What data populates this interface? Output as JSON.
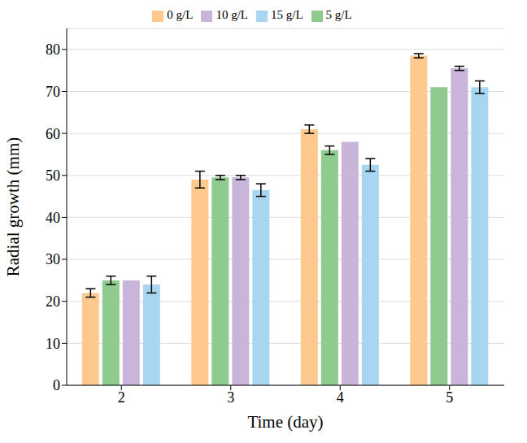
{
  "chart_data": {
    "type": "bar",
    "x_label": "Time (day)",
    "y_label": "Radial growth (mm)",
    "categories": [
      "2",
      "3",
      "4",
      "5"
    ],
    "series": [
      {
        "name": "0 g/L",
        "color": "#fdc98f",
        "values": [
          22,
          49,
          61,
          78.5
        ],
        "errors": [
          1,
          2,
          1,
          0.5
        ]
      },
      {
        "name": "5 g/L",
        "color": "#8fcb8f",
        "values": [
          25,
          49.5,
          56,
          71
        ],
        "errors": [
          1,
          0.5,
          1,
          0
        ]
      },
      {
        "name": "10 g/L",
        "color": "#c9b5d9",
        "values": [
          25,
          49.5,
          58,
          75.5
        ],
        "errors": [
          0,
          0.5,
          0,
          0.5
        ]
      },
      {
        "name": "15 g/L",
        "color": "#a8d6f0",
        "values": [
          24,
          46.5,
          52.5,
          71
        ],
        "errors": [
          2,
          1.5,
          1.5,
          1.5
        ]
      }
    ],
    "ylim": [
      0,
      85
    ],
    "yticks": [
      0,
      10,
      20,
      30,
      40,
      50,
      60,
      70,
      80
    ],
    "grid": true,
    "legend": "top"
  }
}
